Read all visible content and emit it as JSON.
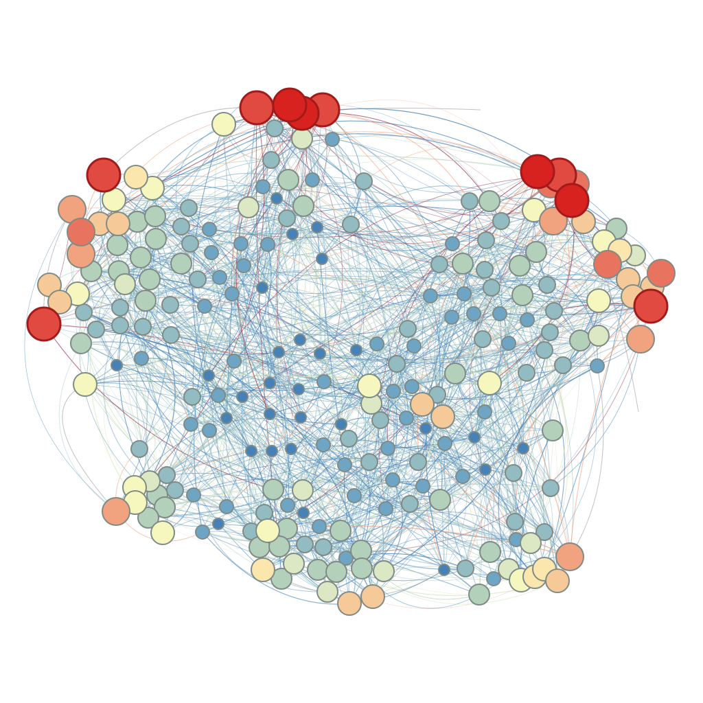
{
  "graph": {
    "palette": {
      "c0": "#4681b8",
      "c1": "#6fa5c4",
      "c2": "#93bcc2",
      "c3": "#b3d0bb",
      "c4": "#dbe8c3",
      "c5": "#f6f7be",
      "c6": "#fbe6ad",
      "c7": "#f6c998",
      "c8": "#f0a37e",
      "c9": "#e8735f",
      "c10": "#e04a40",
      "c11": "#d8221f"
    },
    "node_stroke": "#7f8b86",
    "hot_node_stroke": "#a21b1b"
  }
}
